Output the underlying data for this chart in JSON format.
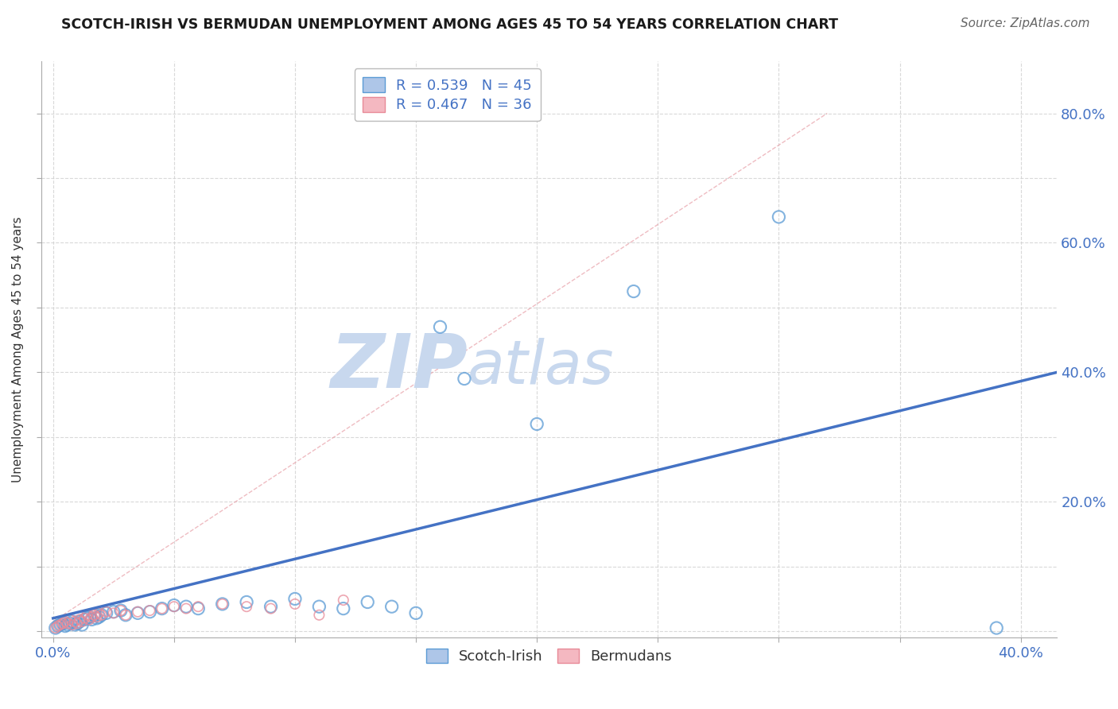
{
  "title": "SCOTCH-IRISH VS BERMUDAN UNEMPLOYMENT AMONG AGES 45 TO 54 YEARS CORRELATION CHART",
  "source": "Source: ZipAtlas.com",
  "ylabel": "Unemployment Among Ages 45 to 54 years",
  "xlabel": "",
  "xlim": [
    -0.005,
    0.415
  ],
  "ylim": [
    -0.01,
    0.88
  ],
  "xticks": [
    0.0,
    0.05,
    0.1,
    0.15,
    0.2,
    0.25,
    0.3,
    0.35,
    0.4
  ],
  "yticks": [
    0.0,
    0.1,
    0.2,
    0.3,
    0.4,
    0.5,
    0.6,
    0.7,
    0.8
  ],
  "xtick_labels": [
    "0.0%",
    "",
    "",
    "",
    "",
    "",
    "",
    "",
    "40.0%"
  ],
  "ytick_labels_right": [
    "",
    "",
    "20.0%",
    "",
    "40.0%",
    "",
    "60.0%",
    "",
    "80.0%"
  ],
  "legend_entries": [
    {
      "label": "R = 0.539   N = 45",
      "color": "#aec6e8"
    },
    {
      "label": "R = 0.467   N = 36",
      "color": "#f4b8c1"
    }
  ],
  "legend_bottom_entries": [
    {
      "label": "Scotch-Irish",
      "color": "#aec6e8"
    },
    {
      "label": "Bermudans",
      "color": "#f4b8c1"
    }
  ],
  "scotch_irish_points": [
    [
      0.001,
      0.005
    ],
    [
      0.002,
      0.008
    ],
    [
      0.003,
      0.01
    ],
    [
      0.004,
      0.012
    ],
    [
      0.005,
      0.008
    ],
    [
      0.006,
      0.01
    ],
    [
      0.007,
      0.012
    ],
    [
      0.008,
      0.015
    ],
    [
      0.009,
      0.01
    ],
    [
      0.01,
      0.012
    ],
    [
      0.011,
      0.015
    ],
    [
      0.012,
      0.01
    ],
    [
      0.013,
      0.018
    ],
    [
      0.014,
      0.02
    ],
    [
      0.015,
      0.022
    ],
    [
      0.016,
      0.018
    ],
    [
      0.017,
      0.025
    ],
    [
      0.018,
      0.02
    ],
    [
      0.019,
      0.022
    ],
    [
      0.02,
      0.025
    ],
    [
      0.022,
      0.028
    ],
    [
      0.025,
      0.03
    ],
    [
      0.028,
      0.032
    ],
    [
      0.03,
      0.025
    ],
    [
      0.035,
      0.028
    ],
    [
      0.04,
      0.03
    ],
    [
      0.045,
      0.035
    ],
    [
      0.05,
      0.04
    ],
    [
      0.055,
      0.038
    ],
    [
      0.06,
      0.035
    ],
    [
      0.07,
      0.042
    ],
    [
      0.08,
      0.045
    ],
    [
      0.09,
      0.038
    ],
    [
      0.1,
      0.05
    ],
    [
      0.11,
      0.038
    ],
    [
      0.12,
      0.035
    ],
    [
      0.13,
      0.045
    ],
    [
      0.14,
      0.038
    ],
    [
      0.15,
      0.028
    ],
    [
      0.16,
      0.47
    ],
    [
      0.17,
      0.39
    ],
    [
      0.2,
      0.32
    ],
    [
      0.24,
      0.525
    ],
    [
      0.3,
      0.64
    ],
    [
      0.39,
      0.005
    ]
  ],
  "bermudan_points": [
    [
      0.001,
      0.005
    ],
    [
      0.002,
      0.008
    ],
    [
      0.003,
      0.01
    ],
    [
      0.004,
      0.012
    ],
    [
      0.005,
      0.015
    ],
    [
      0.006,
      0.012
    ],
    [
      0.007,
      0.018
    ],
    [
      0.008,
      0.01
    ],
    [
      0.009,
      0.015
    ],
    [
      0.01,
      0.012
    ],
    [
      0.011,
      0.018
    ],
    [
      0.012,
      0.015
    ],
    [
      0.013,
      0.02
    ],
    [
      0.014,
      0.025
    ],
    [
      0.015,
      0.018
    ],
    [
      0.016,
      0.022
    ],
    [
      0.017,
      0.025
    ],
    [
      0.018,
      0.022
    ],
    [
      0.019,
      0.028
    ],
    [
      0.02,
      0.025
    ],
    [
      0.022,
      0.03
    ],
    [
      0.025,
      0.028
    ],
    [
      0.028,
      0.032
    ],
    [
      0.03,
      0.025
    ],
    [
      0.035,
      0.03
    ],
    [
      0.04,
      0.032
    ],
    [
      0.045,
      0.035
    ],
    [
      0.05,
      0.038
    ],
    [
      0.055,
      0.035
    ],
    [
      0.06,
      0.038
    ],
    [
      0.07,
      0.042
    ],
    [
      0.08,
      0.038
    ],
    [
      0.09,
      0.035
    ],
    [
      0.1,
      0.042
    ],
    [
      0.11,
      0.025
    ],
    [
      0.12,
      0.048
    ]
  ],
  "scotch_line_x": [
    0.0,
    0.415
  ],
  "scotch_line_y": [
    0.02,
    0.4
  ],
  "bermudan_line_x": [
    0.0,
    0.32
  ],
  "bermudan_line_y": [
    0.015,
    0.8
  ],
  "scotch_fill": "#aec6e8",
  "bermudan_fill": "#f4b8c1",
  "scotch_edge": "#5b9bd5",
  "bermudan_edge": "#e88a98",
  "line_color": "#4472c4",
  "bermudan_line_color": "#e8a0a8",
  "ref_line_color": "#d4a0a8",
  "watermark_zip": "ZIP",
  "watermark_atlas": "atlas",
  "watermark_color_zip": "#c8d8ee",
  "watermark_color_atlas": "#c8d8ee",
  "grid_color": "#d0d0d0",
  "background_color": "#ffffff"
}
